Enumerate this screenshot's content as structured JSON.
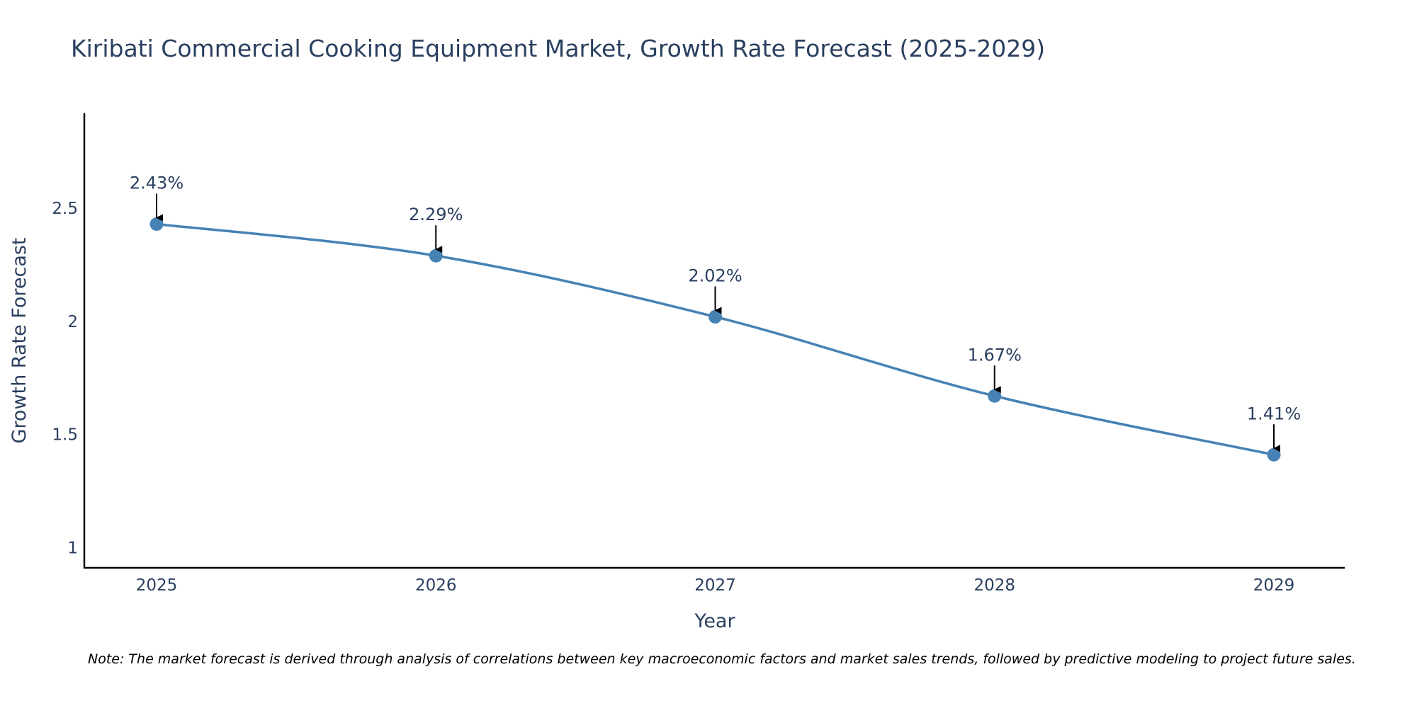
{
  "chart_data": {
    "type": "line",
    "title": "Kiribati Commercial Cooking Equipment Market, Growth Rate Forecast (2025-2029)",
    "xlabel": "Year",
    "ylabel": "Growth Rate Forecast",
    "categories": [
      "2025",
      "2026",
      "2027",
      "2028",
      "2029"
    ],
    "series": [
      {
        "name": "Growth Rate Forecast",
        "values": [
          2.43,
          2.29,
          2.02,
          1.67,
          1.41
        ],
        "labels": [
          "2.43%",
          "2.29%",
          "2.02%",
          "1.67%",
          "1.41%"
        ],
        "color": "#4682b4"
      }
    ],
    "yticks": [
      1,
      1.5,
      2,
      2.5
    ],
    "ytick_labels": [
      "1",
      "1.5",
      "2",
      "2.5"
    ],
    "ylim": [
      0.91,
      2.92
    ],
    "grid": false,
    "line_shape": "spline",
    "annotation_arrows": true
  },
  "note": "Note: The market forecast is derived through analysis of correlations between key macroeconomic factors and market sales trends, followed by predictive modeling to project future sales."
}
